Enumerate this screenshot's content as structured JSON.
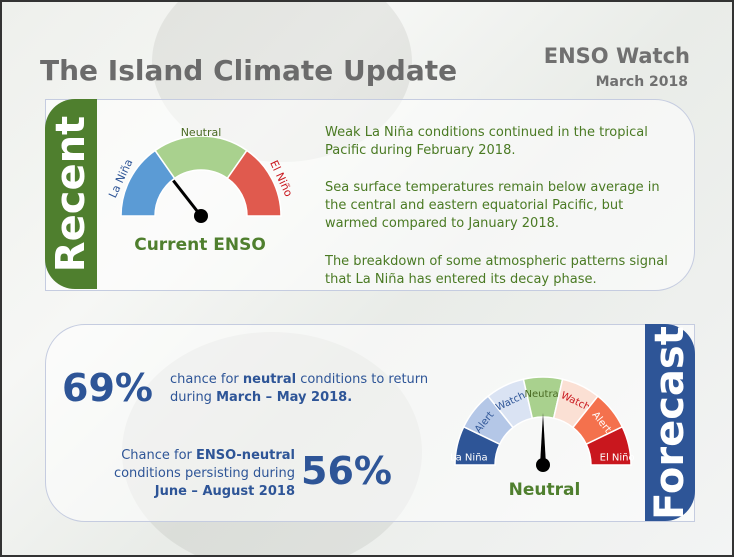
{
  "header": {
    "title": "The Island Climate Update",
    "section": "ENSO Watch",
    "date": "March 2018"
  },
  "recent": {
    "tab": "Recent",
    "gauge": {
      "labels": [
        "La Niña",
        "Neutral",
        "El Niño"
      ],
      "caption": "Current ENSO",
      "colors": [
        "#5b9bd5",
        "#a9d18e",
        "#e05a4e"
      ]
    },
    "paragraphs": [
      "Weak La Niña conditions continued in the tropical Pacific during February 2018.",
      "Sea surface temperatures remain below average in the central and eastern equatorial Pacific, but warmed compared to January 2018.",
      "The breakdown of some atmospheric patterns signal that La Niña has entered its decay phase."
    ]
  },
  "forecast": {
    "tab": "Forecast",
    "stat1": {
      "value": "69%",
      "pre": "chance for ",
      "bold1": "neutral",
      "mid": " conditions to return during ",
      "bold2": "March  – May 2018."
    },
    "stat2": {
      "value": "56%",
      "pre": "Chance for ",
      "bold1": "ENSO-neutral",
      "mid": " conditions persisting during ",
      "bold2": "June – August  2018"
    },
    "gauge": {
      "labels": [
        "La Niña",
        "Alert",
        "Watch",
        "Neutral",
        "Watch",
        "Alert",
        "El Niño"
      ],
      "colors": [
        "#2e5597",
        "#b4c7e7",
        "#dae3f3",
        "#a9d18e",
        "#fbe0d4",
        "#f4714d",
        "#c9171e"
      ],
      "caption": "Neutral"
    }
  }
}
